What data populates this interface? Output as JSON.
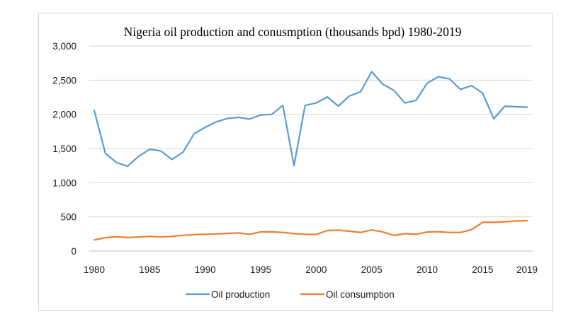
{
  "chart_data": {
    "type": "line",
    "title": "Nigeria oil production and conusmption (thousands bpd) 1980-2019",
    "xlabel": "",
    "ylabel": "",
    "ylim": [
      0,
      3000
    ],
    "yticks": [
      0,
      500,
      1000,
      1500,
      2000,
      2500,
      3000
    ],
    "ytick_labels": [
      "0",
      "500",
      "1,000",
      "1,500",
      "2,000",
      "2,500",
      "3,000"
    ],
    "xlim": [
      1980,
      2019
    ],
    "xtick_labels": [
      "1980",
      "1985",
      "1990",
      "1995",
      "2000",
      "2005",
      "2010",
      "2015",
      "2019"
    ],
    "xtick_values": [
      1980,
      1985,
      1990,
      1995,
      2000,
      2005,
      2010,
      2015,
      2019
    ],
    "grid": "horizontal",
    "legend_position": "bottom",
    "x": [
      1980,
      1981,
      1982,
      1983,
      1984,
      1985,
      1986,
      1987,
      1988,
      1989,
      1990,
      1991,
      1992,
      1993,
      1994,
      1995,
      1996,
      1997,
      1998,
      1999,
      2000,
      2001,
      2002,
      2003,
      2004,
      2005,
      2006,
      2007,
      2008,
      2009,
      2010,
      2011,
      2012,
      2013,
      2014,
      2015,
      2016,
      2017,
      2018,
      2019
    ],
    "series": [
      {
        "name": "Oil production",
        "color": "#5b9bd5",
        "values": [
          2055,
          1430,
          1295,
          1240,
          1385,
          1490,
          1465,
          1340,
          1445,
          1715,
          1810,
          1890,
          1940,
          1955,
          1930,
          1990,
          2000,
          2130,
          1250,
          2130,
          2165,
          2255,
          2120,
          2270,
          2330,
          2625,
          2440,
          2350,
          2165,
          2205,
          2455,
          2550,
          2520,
          2365,
          2420,
          2310,
          1935,
          2120,
          2110,
          2105
        ]
      },
      {
        "name": "Oil consumption",
        "color": "#ed7d31",
        "values": [
          162,
          195,
          210,
          198,
          205,
          215,
          205,
          215,
          230,
          240,
          245,
          250,
          258,
          265,
          245,
          280,
          280,
          272,
          255,
          245,
          242,
          300,
          305,
          290,
          272,
          308,
          280,
          228,
          255,
          245,
          278,
          282,
          272,
          272,
          312,
          420,
          420,
          428,
          440,
          445
        ]
      }
    ]
  }
}
